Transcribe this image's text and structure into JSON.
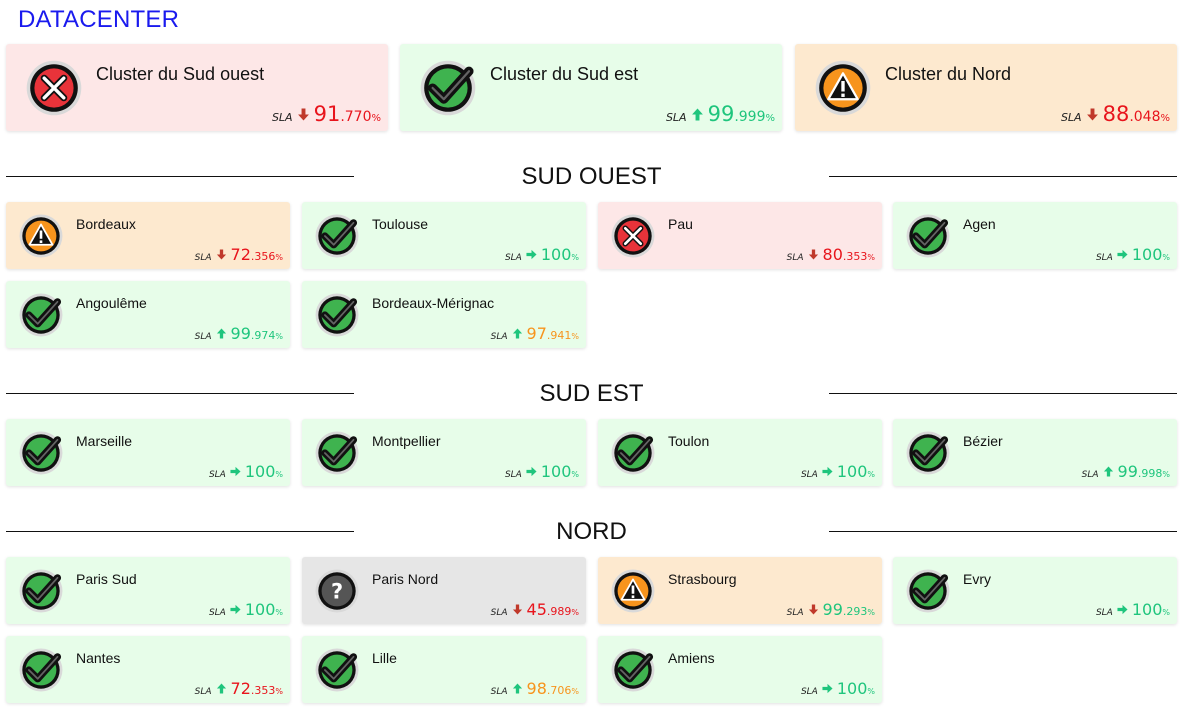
{
  "page": {
    "title": "DATACENTER"
  },
  "colors": {
    "ok_bg": "#e7fde9",
    "error_bg": "#fde7e7",
    "warning_bg": "#fde9cf",
    "unknown_bg": "#e6e6e6",
    "green": "#1fc57d",
    "red": "#e8141c",
    "orange": "#f7941d",
    "title_blue": "#1a1aee"
  },
  "clusters": [
    {
      "name": "Cluster du Sud ouest",
      "status": "error",
      "icon": "error-x-icon",
      "sla": {
        "label": "SLA",
        "trend": "down",
        "int": "91",
        "dec": ".770",
        "unit": "%",
        "color": "red"
      }
    },
    {
      "name": "Cluster du Sud est",
      "status": "ok",
      "icon": "check-icon",
      "sla": {
        "label": "SLA",
        "trend": "up",
        "int": "99",
        "dec": ".999",
        "unit": "%",
        "color": "green"
      }
    },
    {
      "name": "Cluster du Nord",
      "status": "warning",
      "icon": "warning-icon",
      "sla": {
        "label": "SLA",
        "trend": "down",
        "int": "88",
        "dec": ".048",
        "unit": "%",
        "color": "red"
      }
    }
  ],
  "sections": [
    {
      "title": "SUD OUEST",
      "sites": [
        {
          "name": "Bordeaux",
          "status": "warning",
          "icon": "warning-icon",
          "sla": {
            "label": "SLA",
            "trend": "down",
            "int": "72",
            "dec": ".356",
            "unit": "%",
            "color": "red"
          }
        },
        {
          "name": "Toulouse",
          "status": "ok",
          "icon": "check-icon",
          "sla": {
            "label": "SLA",
            "trend": "right",
            "int": "100",
            "dec": "",
            "unit": "%",
            "color": "green"
          }
        },
        {
          "name": "Pau",
          "status": "error",
          "icon": "error-x-icon",
          "sla": {
            "label": "SLA",
            "trend": "down",
            "int": "80",
            "dec": ".353",
            "unit": "%",
            "color": "red"
          }
        },
        {
          "name": "Agen",
          "status": "ok",
          "icon": "check-icon",
          "sla": {
            "label": "SLA",
            "trend": "right",
            "int": "100",
            "dec": "",
            "unit": "%",
            "color": "green"
          }
        },
        {
          "name": "Angoulême",
          "status": "ok",
          "icon": "check-icon",
          "sla": {
            "label": "SLA",
            "trend": "up",
            "int": "99",
            "dec": ".974",
            "unit": "%",
            "color": "green"
          }
        },
        {
          "name": "Bordeaux-Mérignac",
          "status": "ok",
          "icon": "check-icon",
          "sla": {
            "label": "SLA",
            "trend": "up",
            "int": "97",
            "dec": ".941",
            "unit": "%",
            "color": "orange"
          }
        }
      ]
    },
    {
      "title": "SUD EST",
      "sites": [
        {
          "name": "Marseille",
          "status": "ok",
          "icon": "check-icon",
          "sla": {
            "label": "SLA",
            "trend": "right",
            "int": "100",
            "dec": "",
            "unit": "%",
            "color": "green"
          }
        },
        {
          "name": "Montpellier",
          "status": "ok",
          "icon": "check-icon",
          "sla": {
            "label": "SLA",
            "trend": "right",
            "int": "100",
            "dec": "",
            "unit": "%",
            "color": "green"
          }
        },
        {
          "name": "Toulon",
          "status": "ok",
          "icon": "check-icon",
          "sla": {
            "label": "SLA",
            "trend": "right",
            "int": "100",
            "dec": "",
            "unit": "%",
            "color": "green"
          }
        },
        {
          "name": "Bézier",
          "status": "ok",
          "icon": "check-icon",
          "sla": {
            "label": "SLA",
            "trend": "up",
            "int": "99",
            "dec": ".998",
            "unit": "%",
            "color": "green"
          }
        }
      ]
    },
    {
      "title": "NORD",
      "sites": [
        {
          "name": "Paris Sud",
          "status": "ok",
          "icon": "check-icon",
          "sla": {
            "label": "SLA",
            "trend": "right",
            "int": "100",
            "dec": "",
            "unit": "%",
            "color": "green"
          }
        },
        {
          "name": "Paris Nord",
          "status": "unknown",
          "icon": "question-icon",
          "sla": {
            "label": "SLA",
            "trend": "down",
            "int": "45",
            "dec": ".989",
            "unit": "%",
            "color": "red"
          }
        },
        {
          "name": "Strasbourg",
          "status": "warning",
          "icon": "warning-icon",
          "sla": {
            "label": "SLA",
            "trend": "down",
            "int": "99",
            "dec": ".293",
            "unit": "%",
            "color": "green"
          }
        },
        {
          "name": "Evry",
          "status": "ok",
          "icon": "check-icon",
          "sla": {
            "label": "SLA",
            "trend": "right",
            "int": "100",
            "dec": "",
            "unit": "%",
            "color": "green"
          }
        },
        {
          "name": "Nantes",
          "status": "ok",
          "icon": "check-icon",
          "sla": {
            "label": "SLA",
            "trend": "up",
            "int": "72",
            "dec": ".353",
            "unit": "%",
            "color": "red"
          }
        },
        {
          "name": "Lille",
          "status": "ok",
          "icon": "check-icon",
          "sla": {
            "label": "SLA",
            "trend": "up",
            "int": "98",
            "dec": ".706",
            "unit": "%",
            "color": "orange"
          }
        },
        {
          "name": "Amiens",
          "status": "ok",
          "icon": "check-icon",
          "sla": {
            "label": "SLA",
            "trend": "right",
            "int": "100",
            "dec": "",
            "unit": "%",
            "color": "green"
          }
        }
      ]
    }
  ]
}
